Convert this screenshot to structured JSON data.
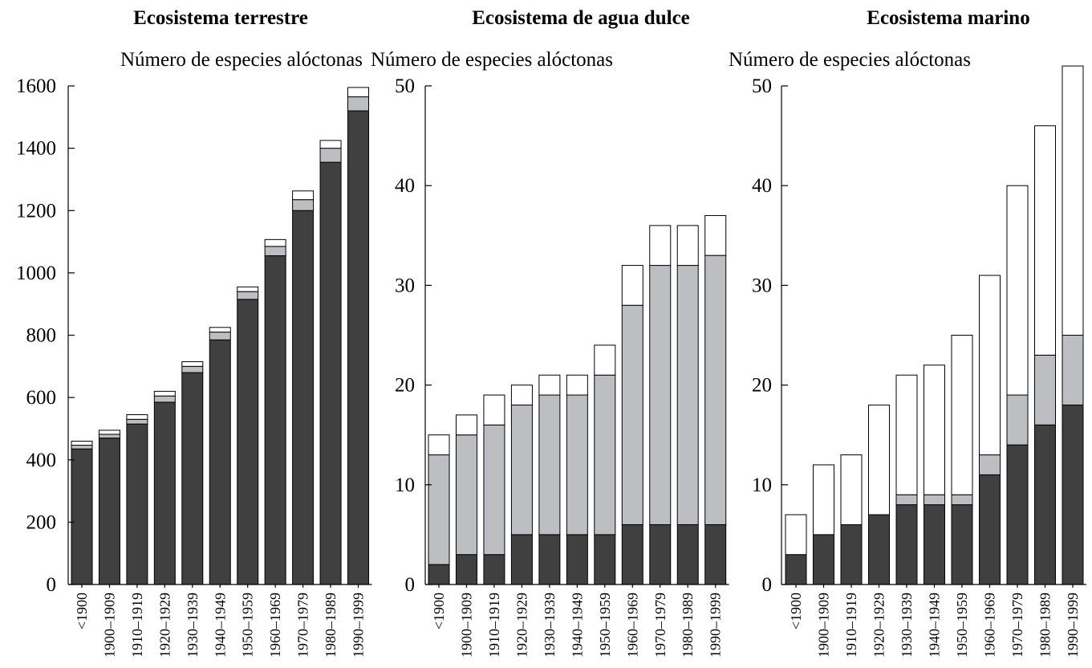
{
  "colors": {
    "dark": "#404040",
    "gray": "#bdbec2",
    "white": "#ffffff",
    "outline": "#000000"
  },
  "chart_data": [
    {
      "type": "bar",
      "stacked": true,
      "title": "Ecosistema terrestre",
      "ylabel": "Número de especies alóctonas",
      "ylim": [
        0,
        1600
      ],
      "yticks": [
        0,
        200,
        400,
        600,
        800,
        1000,
        1200,
        1400,
        1600
      ],
      "categories": [
        "<1900",
        "1900–1909",
        "1910–1919",
        "1920–1929",
        "1930–1939",
        "1940–1949",
        "1950–1959",
        "1960–1969",
        "1970–1979",
        "1980–1989",
        "1990–1999"
      ],
      "series": [
        {
          "color": "dark",
          "values": [
            435,
            470,
            515,
            585,
            680,
            785,
            915,
            1055,
            1200,
            1355,
            1520
          ]
        },
        {
          "color": "gray",
          "values": [
            12,
            12,
            15,
            20,
            20,
            25,
            25,
            30,
            35,
            45,
            45
          ]
        },
        {
          "color": "white",
          "values": [
            13,
            13,
            15,
            15,
            15,
            15,
            15,
            22,
            28,
            25,
            30
          ]
        }
      ]
    },
    {
      "type": "bar",
      "stacked": true,
      "title": "Ecosistema de agua dulce",
      "ylabel": "Número de especies alóctonas",
      "ylim": [
        0,
        50
      ],
      "yticks": [
        0,
        10,
        20,
        30,
        40,
        50
      ],
      "categories": [
        "<1900",
        "1900–1909",
        "1910–1919",
        "1920–1929",
        "1930–1939",
        "1940–1949",
        "1950–1959",
        "1960–1969",
        "1970–1979",
        "1980–1989",
        "1990–1999"
      ],
      "series": [
        {
          "color": "dark",
          "values": [
            2,
            3,
            3,
            5,
            5,
            5,
            5,
            6,
            6,
            6,
            6
          ]
        },
        {
          "color": "gray",
          "values": [
            11,
            12,
            13,
            13,
            14,
            14,
            16,
            22,
            26,
            26,
            27
          ]
        },
        {
          "color": "white",
          "values": [
            2,
            2,
            3,
            2,
            2,
            2,
            3,
            4,
            4,
            4,
            4
          ]
        }
      ]
    },
    {
      "type": "bar",
      "stacked": true,
      "title": "Ecosistema marino",
      "ylabel": "Número de especies alóctonas",
      "ylim": [
        0,
        50
      ],
      "yticks": [
        0,
        10,
        20,
        30,
        40,
        50
      ],
      "categories": [
        "<1900",
        "1900–1909",
        "1910–1919",
        "1920–1929",
        "1930–1939",
        "1940–1949",
        "1950–1959",
        "1960–1969",
        "1970–1979",
        "1980–1989",
        "1990–1999"
      ],
      "series": [
        {
          "color": "dark",
          "values": [
            3,
            5,
            6,
            7,
            8,
            8,
            8,
            11,
            14,
            16,
            18
          ]
        },
        {
          "color": "gray",
          "values": [
            0,
            0,
            0,
            0,
            1,
            1,
            1,
            2,
            5,
            7,
            7
          ]
        },
        {
          "color": "white",
          "values": [
            4,
            7,
            7,
            11,
            12,
            13,
            16,
            18,
            21,
            23,
            27
          ]
        }
      ]
    }
  ]
}
